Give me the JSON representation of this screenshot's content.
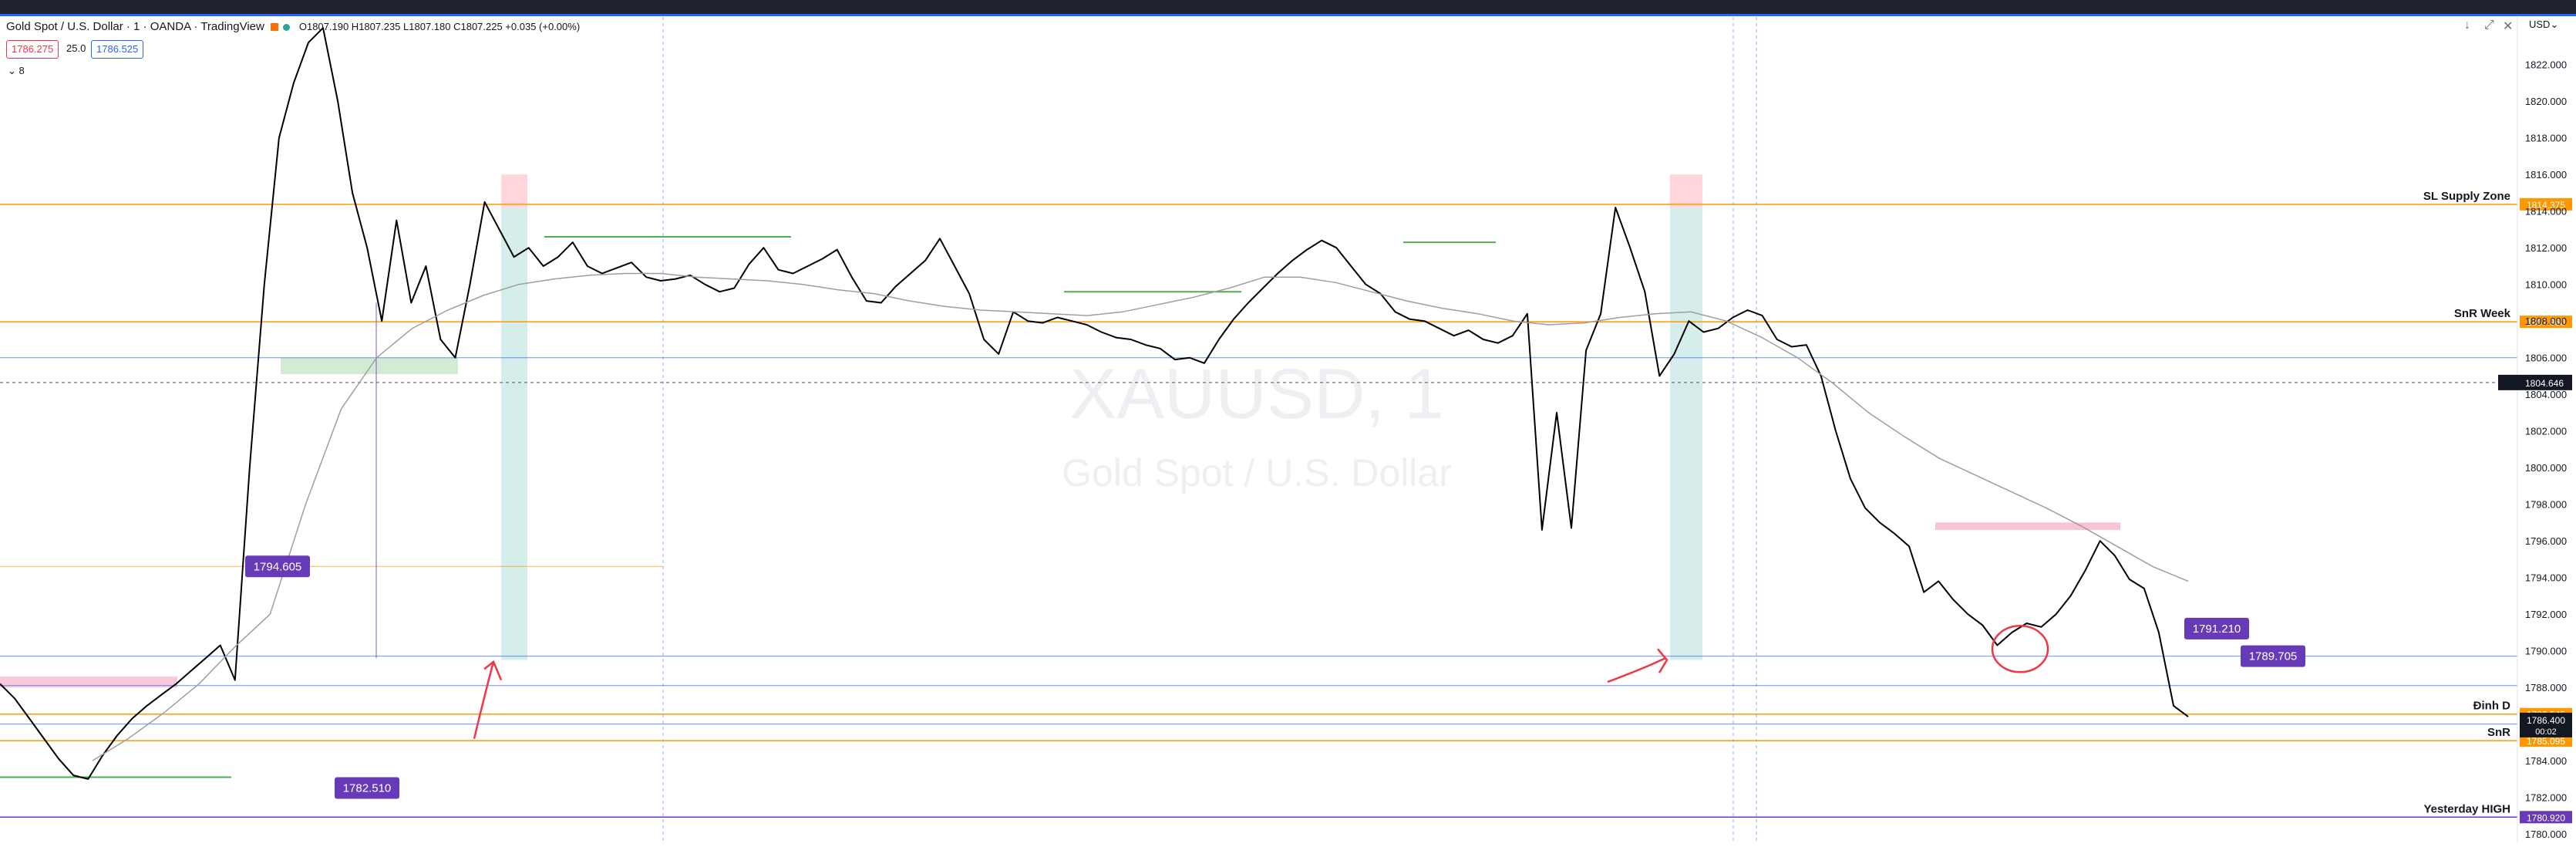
{
  "header": {
    "title": "Gold Spot / U.S. Dollar · 1 · OANDA · TradingView",
    "ohlc": "O1807.190 H1807.235 L1807.180 C1807.225 +0.035 (+0.00%)",
    "bid": "1786.275",
    "spread": "25.0",
    "ask": "1786.525",
    "indicator_toggle": "⌄ 8",
    "currency": "USD⌄"
  },
  "watermark": {
    "symbol": "XAUUSD, 1",
    "description": "Gold Spot / U.S. Dollar"
  },
  "colors": {
    "orange_line": "#ff9800",
    "purple_label": "#673ab7",
    "blue_line": "#2962ff",
    "green_line": "#4caf50",
    "teal_box": "#b2dfdb",
    "pink_box": "#f8bbd0",
    "red_annotation": "#f23645",
    "candle": "#000000"
  },
  "chart_data": {
    "type": "line",
    "symbol": "XAUUSD",
    "timeframe": "1",
    "ylim": [
      1779.5,
      1824.6
    ],
    "y_ticks": [
      1780.0,
      1782.0,
      1784.0,
      1786.0,
      1788.0,
      1790.0,
      1792.0,
      1794.0,
      1796.0,
      1798.0,
      1800.0,
      1802.0,
      1804.0,
      1806.0,
      1808.0,
      1810.0,
      1812.0,
      1814.0,
      1816.0,
      1818.0,
      1820.0,
      1822.0
    ],
    "price_series": [
      1788.2,
      1787.4,
      1786.3,
      1785.2,
      1784.1,
      1783.2,
      1783.0,
      1784.3,
      1785.4,
      1786.3,
      1787.0,
      1787.6,
      1788.2,
      1788.9,
      1789.6,
      1790.3,
      1788.4,
      1800.0,
      1810.0,
      1818.0,
      1821.0,
      1823.2,
      1824.0,
      1820.0,
      1815.0,
      1812.0,
      1808.0,
      1813.5,
      1809.0,
      1811.0,
      1807.0,
      1806.0,
      1810.0,
      1814.5,
      1813.0,
      1811.5,
      1812.0,
      1811.0,
      1811.5,
      1812.3,
      1811.0,
      1810.6,
      1810.9,
      1811.2,
      1810.4,
      1810.2,
      1810.3,
      1810.5,
      1810.0,
      1809.6,
      1809.8,
      1811.1,
      1812.0,
      1810.8,
      1810.6,
      1811.0,
      1811.4,
      1811.9,
      1810.4,
      1809.1,
      1809.0,
      1809.9,
      1810.6,
      1811.3,
      1812.5,
      1811.0,
      1809.5,
      1807.0,
      1806.2,
      1808.5,
      1808.0,
      1807.9,
      1808.2,
      1808.0,
      1807.8,
      1807.4,
      1807.1,
      1807.0,
      1806.7,
      1806.5,
      1805.9,
      1806.0,
      1805.7,
      1807.0,
      1808.1,
      1809.0,
      1809.8,
      1810.6,
      1811.3,
      1811.9,
      1812.4,
      1812.0,
      1811.0,
      1810.0,
      1809.5,
      1808.5,
      1808.1,
      1808.0,
      1807.6,
      1807.2,
      1807.5,
      1807.0,
      1806.8,
      1807.2,
      1808.4,
      1796.6,
      1803.0,
      1796.7,
      1806.4,
      1808.4,
      1814.2,
      1812.0,
      1809.6,
      1805.0,
      1806.2,
      1808.0,
      1807.4,
      1807.6,
      1808.2,
      1808.6,
      1808.3,
      1807.0,
      1806.6,
      1806.7,
      1805.0,
      1802.0,
      1799.4,
      1797.8,
      1797.0,
      1796.4,
      1795.7,
      1793.2,
      1793.8,
      1792.8,
      1792.0,
      1791.4,
      1790.3,
      1791.0,
      1791.5,
      1791.3,
      1792.0,
      1793.0,
      1794.4,
      1796.0,
      1795.2,
      1793.9,
      1793.4,
      1791.0,
      1787.0,
      1786.4
    ],
    "moving_average": [
      1784.0,
      1785.2,
      1786.6,
      1788.2,
      1790.2,
      1792.0,
      1798.0,
      1803.2,
      1806.0,
      1807.6,
      1808.6,
      1809.4,
      1810.0,
      1810.3,
      1810.5,
      1810.6,
      1810.6,
      1810.4,
      1810.3,
      1810.2,
      1810.0,
      1809.7,
      1809.5,
      1809.1,
      1808.8,
      1808.6,
      1808.5,
      1808.4,
      1808.3,
      1808.5,
      1808.9,
      1809.3,
      1809.8,
      1810.4,
      1810.4,
      1810.1,
      1809.6,
      1809.1,
      1808.7,
      1808.4,
      1808.0,
      1807.8,
      1807.9,
      1808.2,
      1808.4,
      1808.5,
      1808.0,
      1807.1,
      1806.0,
      1804.6,
      1803.0,
      1801.7,
      1800.5,
      1799.6,
      1798.7,
      1797.8,
      1796.8,
      1795.7,
      1794.6,
      1793.8
    ],
    "price_lines": [
      {
        "label": "SL Supply Zone",
        "price": 1814.375,
        "tag": "1814.375",
        "color": "#ff9800"
      },
      {
        "label": "SnR Week",
        "price": 1807.96,
        "tag": "1807.960",
        "color": "#ff9800"
      },
      {
        "label": "Đinh D",
        "price": 1786.545,
        "tag": "1786.545",
        "color": "#ff9800"
      },
      {
        "label": "SnR",
        "price": 1785.095,
        "tag": "1785.095",
        "color": "#ff9800"
      },
      {
        "label": "Yesterday HIGH",
        "price": 1780.92,
        "tag": "1780.920",
        "color": "#673ab7"
      }
    ],
    "extra_levels": [
      {
        "price": 1806.0,
        "color": "#2962ff"
      },
      {
        "price": 1794.605,
        "color": "#ff9800"
      },
      {
        "price": 1789.705,
        "color": "#2962ff"
      },
      {
        "price": 1788.1,
        "color": "#2962ff"
      },
      {
        "price": 1786.0,
        "color": "#2962ff"
      }
    ],
    "crosshair_price": "1804.646",
    "last_price": {
      "value": "1786.400",
      "countdown": "00:02"
    },
    "callouts": [
      {
        "text": "1794.605"
      },
      {
        "text": "1791.210"
      },
      {
        "text": "1789.705"
      },
      {
        "text": "1782.510"
      }
    ]
  }
}
